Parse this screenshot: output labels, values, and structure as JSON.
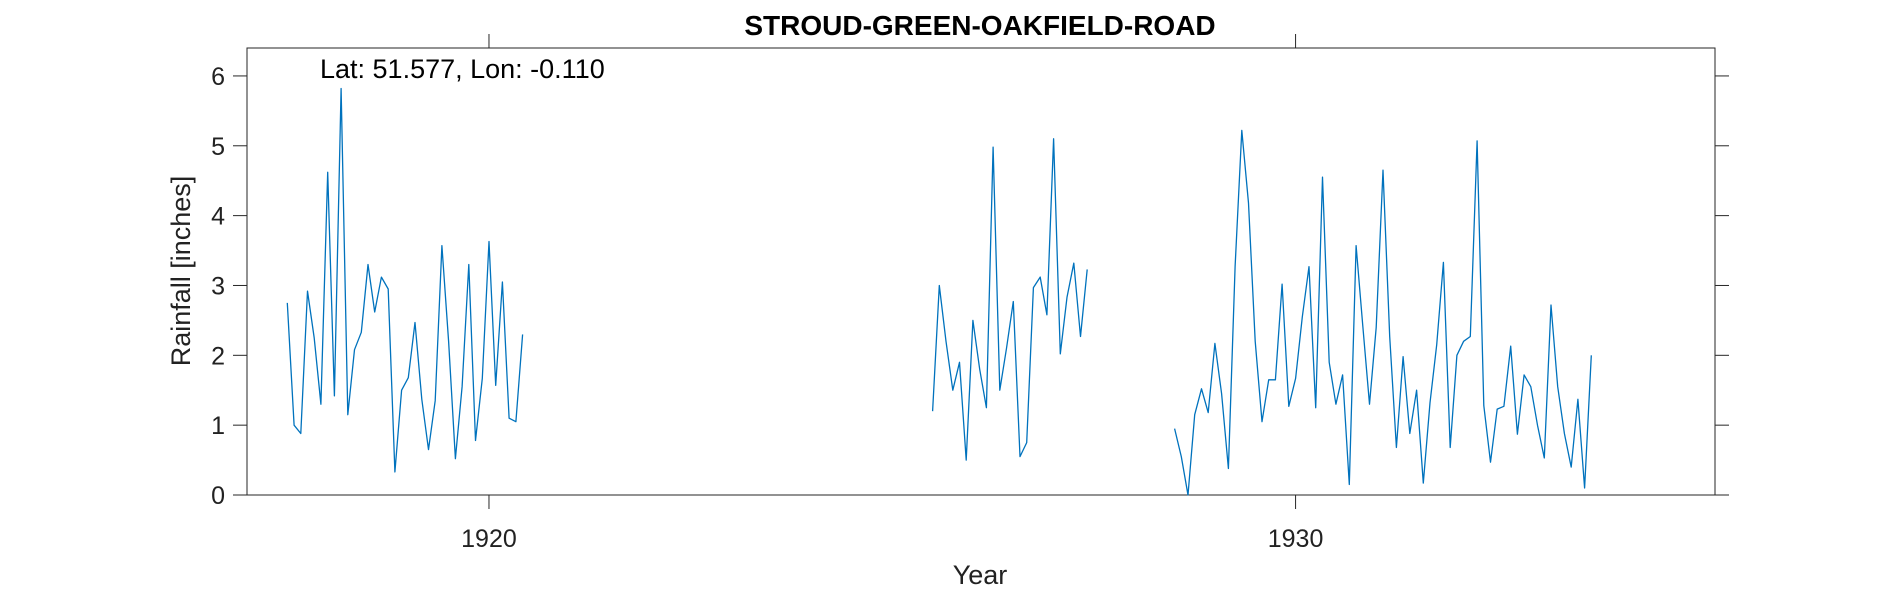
{
  "chart_data": {
    "type": "line",
    "title": "STROUD-GREEN-OAKFIELD-ROAD",
    "annotation": "Lat: 51.577, Lon: -0.110",
    "xlabel": "Year",
    "ylabel": "Rainfall [inches]",
    "xlim": [
      1917.0,
      1935.2
    ],
    "ylim": [
      0,
      6.4
    ],
    "xticks": [
      1920,
      1930
    ],
    "xtick_labels": [
      "1920",
      "1930"
    ],
    "yticks": [
      0,
      1,
      2,
      3,
      4,
      5,
      6
    ],
    "ytick_labels": [
      "0",
      "1",
      "2",
      "3",
      "4",
      "5",
      "6"
    ],
    "grid": false,
    "line_color": "#0072BD",
    "series": [
      {
        "segments": [
          {
            "start_year": 1917.5,
            "values": [
              2.75,
              1.0,
              0.88,
              2.92,
              2.25,
              1.3,
              4.62,
              1.42,
              5.82,
              1.15,
              2.08,
              2.33,
              3.3,
              2.62,
              3.12,
              2.95,
              0.33,
              1.5,
              1.68,
              2.47,
              1.37,
              0.65,
              1.35,
              3.57,
              2.2,
              0.52,
              1.55,
              3.3,
              0.78,
              1.67,
              3.63,
              1.57,
              3.05,
              1.1,
              1.05,
              2.3
            ]
          },
          {
            "start_year": 1925.5,
            "values": [
              1.2,
              3.0,
              2.2,
              1.5,
              1.9,
              0.5,
              2.5,
              1.8,
              1.25,
              4.98,
              1.5,
              2.1,
              2.77,
              0.55,
              0.75,
              2.97,
              3.12,
              2.58,
              5.1,
              2.02,
              2.83,
              3.32,
              2.27,
              3.23
            ]
          },
          {
            "start_year": 1928.5,
            "values": [
              0.95,
              0.55,
              0.0,
              1.15,
              1.52,
              1.18,
              2.17,
              1.45,
              0.38,
              3.27,
              5.22,
              4.18,
              2.2,
              1.05,
              1.65,
              1.65,
              3.02,
              1.27,
              1.67,
              2.55,
              3.27,
              1.25,
              4.55,
              1.9,
              1.3,
              1.72,
              0.15,
              3.57,
              2.42,
              1.3,
              2.4,
              4.65,
              2.27,
              0.68,
              1.98,
              0.88,
              1.5,
              0.17,
              1.32,
              2.15,
              3.33,
              0.68,
              2.0,
              2.2,
              2.27,
              5.07,
              1.28,
              0.47,
              1.23,
              1.27,
              2.13,
              0.87,
              1.72,
              1.55,
              1.0,
              0.53,
              2.72,
              1.55,
              0.88,
              0.4,
              1.37,
              0.1,
              2.0
            ]
          }
        ]
      }
    ]
  }
}
